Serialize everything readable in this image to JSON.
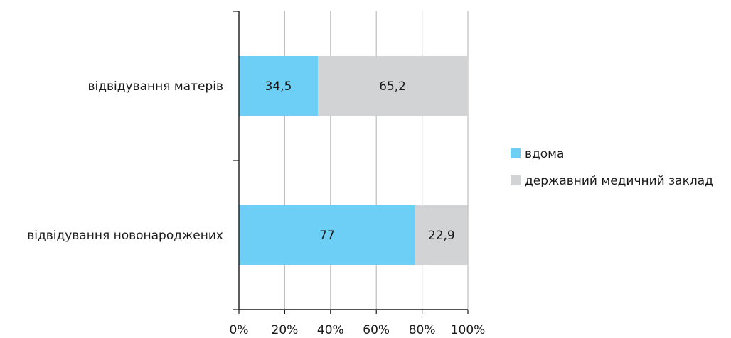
{
  "chart_data": {
    "type": "bar",
    "orientation": "horizontal",
    "stacked": true,
    "categories": [
      "відвідування матерів",
      "відвідування новонароджених"
    ],
    "series": [
      {
        "name": "вдома",
        "values": [
          34.5,
          77
        ],
        "labels": [
          "34,5",
          "77"
        ],
        "color": "#6dcff6"
      },
      {
        "name": "державний медичний заклад",
        "values": [
          65.2,
          22.9
        ],
        "labels": [
          "65,2",
          "22,9"
        ],
        "color": "#d1d3d4"
      }
    ],
    "xlim": [
      0,
      100
    ],
    "x_ticks": [
      0,
      20,
      40,
      60,
      80,
      100
    ],
    "x_tick_labels": [
      "0%",
      "20%",
      "40%",
      "60%",
      "80%",
      "100%"
    ],
    "title": "",
    "xlabel": "",
    "ylabel": "",
    "grid": "vertical",
    "legend_position": "right"
  }
}
